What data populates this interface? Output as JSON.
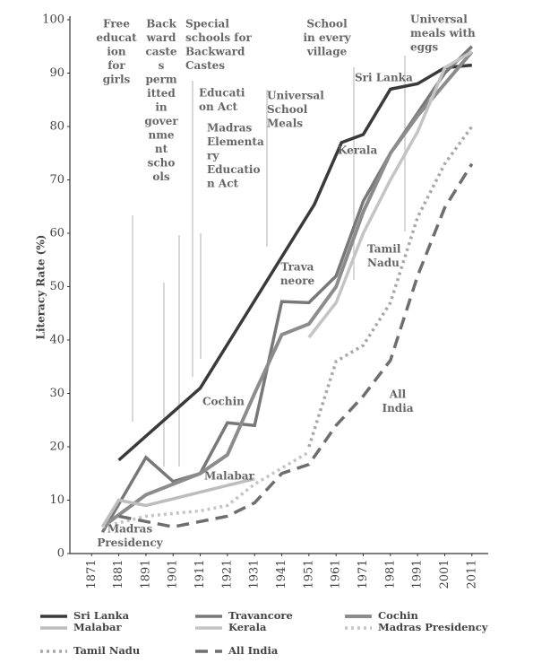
{
  "chart_data": {
    "type": "line",
    "ylabel": "Literacy Rate (%)",
    "xlim": [
      1863,
      2017
    ],
    "ylim": [
      0,
      100
    ],
    "xticks": [
      1871,
      1881,
      1891,
      1901,
      1911,
      1921,
      1931,
      1941,
      1951,
      1961,
      1971,
      1981,
      1991,
      2001,
      2011
    ],
    "yticks": [
      0,
      10,
      20,
      30,
      40,
      50,
      60,
      70,
      80,
      90,
      100
    ],
    "series": [
      {
        "name": "Sri Lanka",
        "color": "#3a3a3a",
        "style": "solid",
        "width": 3.5,
        "x": [
          1881,
          1911,
          1953,
          1963,
          1971,
          1981,
          1991,
          2001,
          2011
        ],
        "values": [
          17.5,
          31,
          65.4,
          77,
          78.5,
          87,
          88,
          91,
          91.5
        ]
      },
      {
        "name": "Travancore",
        "color": "#787878",
        "style": "solid",
        "width": 3.5,
        "x": [
          1875,
          1891,
          1901,
          1911,
          1921,
          1931,
          1941,
          1951,
          1961,
          1971,
          1981,
          2001,
          2011
        ],
        "values": [
          4,
          18,
          13.5,
          15,
          24.5,
          24,
          47.2,
          47,
          52,
          66,
          75,
          90,
          95
        ]
      },
      {
        "name": "Cochin",
        "color": "#8c8c8c",
        "style": "solid",
        "width": 4,
        "x": [
          1875,
          1891,
          1911,
          1921,
          1931,
          1941,
          1951,
          1961,
          1971,
          1981,
          1991,
          2011
        ],
        "values": [
          5,
          11,
          15,
          18.5,
          30,
          41,
          43,
          50,
          64,
          75,
          82,
          94
        ]
      },
      {
        "name": "Malabar",
        "color": "#bdbdbd",
        "style": "solid",
        "width": 3.5,
        "x": [
          1875,
          1881,
          1891,
          1931
        ],
        "values": [
          5,
          10,
          9,
          14
        ]
      },
      {
        "name": "Kerala",
        "color": "#c4c4c4",
        "style": "solid",
        "width": 3.5,
        "x": [
          1951,
          1961,
          1971,
          1981,
          1991,
          2001,
          2011
        ],
        "values": [
          40.5,
          47,
          60,
          70,
          79,
          91,
          94
        ]
      },
      {
        "name": "Madras Presidency",
        "color": "#c4c4c4",
        "style": "dotted",
        "width": 3.5,
        "x": [
          1875,
          1891,
          1911,
          1921,
          1931,
          1951
        ],
        "values": [
          5,
          7,
          8,
          9,
          13,
          19
        ]
      },
      {
        "name": "Tamil Nadu",
        "color": "#a8a8a8",
        "style": "dotted",
        "width": 3.5,
        "x": [
          1951,
          1961,
          1971,
          1981,
          1991,
          2001,
          2011
        ],
        "values": [
          20,
          36,
          39,
          47,
          63,
          73,
          80
        ]
      },
      {
        "name": "All India",
        "color": "#6e6e6e",
        "style": "dashed",
        "width": 3.5,
        "x": [
          1881,
          1891,
          1901,
          1911,
          1921,
          1931,
          1941,
          1951,
          1961,
          1971,
          1981,
          1991,
          2001,
          2011
        ],
        "values": [
          7,
          6,
          5,
          6,
          7,
          9.5,
          15,
          16.7,
          24,
          29.5,
          36.2,
          52,
          64.8,
          73
        ]
      }
    ],
    "annotations": [
      [
        "Free",
        "educat",
        "ion",
        "for",
        "girls"
      ],
      [
        "Back",
        "ward",
        "caste",
        "s",
        "perm",
        "itted",
        "in",
        "gover",
        "nme",
        "nt",
        "scho",
        "ols"
      ],
      [
        "Special",
        "schools for",
        "Backward",
        "Castes"
      ],
      [
        "Educati",
        "on Act"
      ],
      [
        "Madras",
        "Elementa",
        "ry",
        "Educatio",
        "n Act"
      ],
      [
        "Universal",
        "School",
        "Meals"
      ],
      [
        "School",
        "in every",
        "village"
      ],
      [
        "Universal",
        "meals with",
        "eggs"
      ],
      [
        "Sri Lanka"
      ],
      [
        "Kerala"
      ],
      [
        "Trava",
        "neore"
      ],
      [
        "Tamil",
        "Nadu"
      ],
      [
        "All",
        "India"
      ],
      [
        "Cochin"
      ],
      [
        "Malabar"
      ],
      [
        "Madras",
        "Presidency"
      ]
    ]
  }
}
